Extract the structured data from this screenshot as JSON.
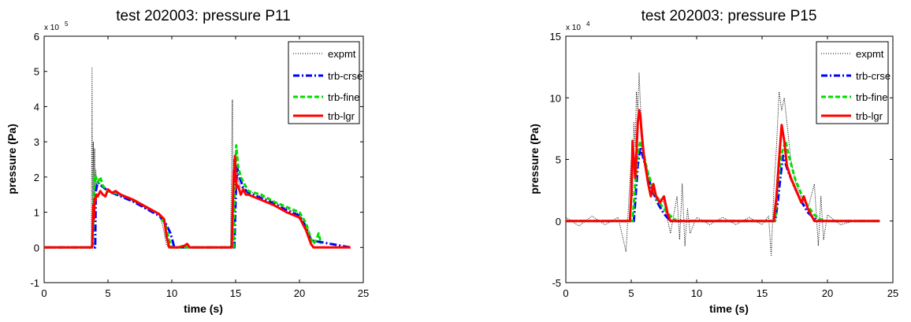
{
  "chart_data": [
    {
      "type": "line",
      "title": "test 202003: pressure P11",
      "xlabel": "time (s)",
      "ylabel": "pressure (Pa)",
      "xlim": [
        0,
        25
      ],
      "ylim": [
        -1,
        6
      ],
      "y_multiplier_label": "x 10",
      "y_multiplier_exponent": "5",
      "xticks": [
        "0",
        "5",
        "10",
        "15",
        "20",
        "25"
      ],
      "yticks": [
        "-1",
        "0",
        "1",
        "2",
        "3",
        "4",
        "5",
        "6"
      ],
      "legend_position": "top-right",
      "grid": false,
      "series": [
        {
          "name": "expmt",
          "color": "#000000",
          "style": "dotted",
          "x": [
            0,
            3.7,
            3.75,
            3.8,
            3.85,
            3.9,
            3.95,
            4.0,
            4.05,
            4.1,
            4.2,
            4.3,
            4.5,
            5.0,
            6.0,
            7.0,
            8.0,
            9.0,
            9.3,
            9.6,
            10.0,
            11.0,
            12.0,
            14.6,
            14.75,
            14.8,
            14.85,
            14.9,
            15.0,
            15.1,
            15.2,
            15.4,
            16.0,
            17.0,
            18.0,
            19.0,
            20.0,
            20.5,
            21.0,
            21.3
          ],
          "y": [
            0,
            0,
            5.1,
            0.2,
            3.0,
            1.5,
            2.8,
            1.6,
            2.2,
            1.8,
            1.9,
            1.85,
            1.75,
            1.6,
            1.45,
            1.3,
            1.1,
            0.95,
            0.6,
            0.05,
            0,
            0,
            0,
            0,
            4.2,
            1.2,
            2.5,
            1.9,
            1.5,
            2.3,
            1.9,
            1.7,
            1.6,
            1.45,
            1.3,
            1.1,
            0.95,
            0.5,
            0.05,
            0
          ]
        },
        {
          "name": "trb-crse",
          "color": "#0000ff",
          "style": "dashdot",
          "x": [
            0,
            4.0,
            4.05,
            4.2,
            4.5,
            5.0,
            6.0,
            7.0,
            8.0,
            9.0,
            9.5,
            9.9,
            10.2,
            14.9,
            15.0,
            15.1,
            15.3,
            15.6,
            16.0,
            17.0,
            18.0,
            19.0,
            20.0,
            20.5,
            20.9,
            24
          ],
          "y": [
            0,
            0,
            1.6,
            1.85,
            1.75,
            1.6,
            1.45,
            1.3,
            1.1,
            0.9,
            0.7,
            0.4,
            0,
            0,
            1.35,
            2.3,
            2.0,
            1.7,
            1.55,
            1.4,
            1.25,
            1.05,
            0.9,
            0.6,
            0.2,
            0
          ]
        },
        {
          "name": "trb-fine",
          "color": "#00dd00",
          "style": "dashed",
          "x": [
            0,
            3.8,
            3.9,
            4.0,
            4.2,
            4.4,
            4.6,
            5.0,
            6.0,
            7.0,
            8.0,
            9.0,
            9.5,
            9.8,
            10.0,
            14.85,
            14.95,
            15.05,
            15.2,
            15.4,
            15.7,
            16.0,
            17.0,
            18.0,
            19.0,
            20.0,
            20.5,
            20.9,
            21.1,
            21.3,
            21.5,
            21.7
          ],
          "y": [
            0,
            0,
            1.5,
            2.05,
            1.85,
            2.0,
            1.75,
            1.6,
            1.5,
            1.35,
            1.15,
            0.95,
            0.65,
            0.2,
            0,
            0,
            2.0,
            2.9,
            2.3,
            2.0,
            1.8,
            1.6,
            1.5,
            1.3,
            1.15,
            1.0,
            0.7,
            0.25,
            0.1,
            0.2,
            0.4,
            0.1
          ]
        },
        {
          "name": "trb-lgr",
          "color": "#ff0000",
          "style": "solid",
          "x": [
            0,
            3.75,
            3.8,
            3.85,
            3.9,
            3.95,
            4.0,
            4.1,
            4.2,
            4.4,
            4.6,
            4.8,
            5.0,
            5.3,
            5.6,
            6.0,
            7.0,
            8.0,
            9.0,
            9.4,
            9.6,
            9.8,
            10.5,
            11.0,
            11.2,
            11.4,
            14.7,
            14.75,
            14.8,
            14.85,
            14.9,
            14.95,
            15.0,
            15.1,
            15.2,
            15.4,
            15.6,
            15.8,
            16.0,
            17.0,
            18.0,
            19.0,
            20.0,
            20.5,
            20.9,
            21.1,
            24
          ],
          "y": [
            0,
            0,
            0.5,
            1.2,
            0.8,
            1.4,
            1.3,
            1.5,
            1.45,
            1.6,
            1.5,
            1.45,
            1.65,
            1.55,
            1.6,
            1.5,
            1.35,
            1.15,
            0.95,
            0.8,
            0.3,
            0,
            0,
            0.05,
            0.1,
            0,
            0,
            0.8,
            1.5,
            2.2,
            1.9,
            2.6,
            2.0,
            1.7,
            1.75,
            1.5,
            1.65,
            1.5,
            1.5,
            1.35,
            1.2,
            1.0,
            0.85,
            0.5,
            0.1,
            0,
            0
          ]
        }
      ]
    },
    {
      "type": "line",
      "title": "test 202003: pressure P15",
      "xlabel": "time (s)",
      "ylabel": "pressure (Pa)",
      "xlim": [
        0,
        25
      ],
      "ylim": [
        -5,
        15
      ],
      "y_multiplier_label": "x 10",
      "y_multiplier_exponent": "4",
      "xticks": [
        "0",
        "5",
        "10",
        "15",
        "20",
        "25"
      ],
      "yticks": [
        "-5",
        "0",
        "5",
        "10",
        "15"
      ],
      "legend_position": "top-right",
      "grid": false,
      "series": [
        {
          "name": "expmt",
          "color": "#000000",
          "style": "dotted",
          "x": [
            0,
            1,
            2,
            3,
            4,
            4.6,
            4.8,
            5.0,
            5.1,
            5.2,
            5.3,
            5.4,
            5.5,
            5.6,
            5.7,
            5.8,
            6.0,
            6.3,
            6.6,
            7.0,
            7.5,
            8.0,
            8.5,
            8.7,
            8.9,
            9.1,
            9.3,
            9.5,
            10,
            11,
            12,
            13,
            14,
            15,
            15.5,
            15.7,
            15.9,
            16.1,
            16.3,
            16.5,
            16.7,
            16.9,
            17.2,
            17.6,
            18,
            18.5,
            19,
            19.3,
            19.5,
            19.7,
            20,
            21,
            22
          ],
          "y": [
            0.3,
            -0.4,
            0.4,
            -0.3,
            0.3,
            -2.5,
            1.5,
            5.0,
            2.0,
            8.0,
            6.0,
            10.5,
            9.0,
            12.0,
            9.5,
            8.0,
            5.5,
            3.5,
            2.5,
            2.0,
            1.5,
            -1.0,
            2.0,
            -1.5,
            3.0,
            -2.0,
            1.0,
            -1.0,
            0.3,
            -0.3,
            0.3,
            -0.3,
            0.3,
            -0.3,
            0.4,
            -2.8,
            2.5,
            6.0,
            10.5,
            9.0,
            10.0,
            8.0,
            5.0,
            3.0,
            2.0,
            1.0,
            3.0,
            -2.0,
            2.0,
            -1.5,
            0.5,
            -0.3,
            0
          ]
        },
        {
          "name": "trb-crse",
          "color": "#0000ff",
          "style": "dashdot",
          "x": [
            0,
            5.2,
            5.3,
            5.5,
            5.7,
            6.0,
            6.5,
            7.0,
            7.5,
            8.0,
            16.0,
            16.2,
            16.4,
            16.6,
            17.0,
            17.5,
            18.0,
            18.5,
            19.0,
            19.5,
            24
          ],
          "y": [
            0,
            0,
            1.5,
            4.5,
            6.0,
            4.8,
            2.8,
            1.5,
            0.6,
            0,
            0,
            1.5,
            3.5,
            5.3,
            4.0,
            2.7,
            1.6,
            0.7,
            0.2,
            0,
            0
          ]
        },
        {
          "name": "trb-fine",
          "color": "#00dd00",
          "style": "dashed",
          "x": [
            0,
            5.1,
            5.3,
            5.5,
            5.7,
            5.9,
            6.2,
            6.6,
            7.0,
            7.5,
            8.0,
            8.5,
            16.0,
            16.2,
            16.5,
            16.8,
            17.0,
            17.5,
            18.0,
            18.5,
            19.0,
            19.5,
            20.0,
            24
          ],
          "y": [
            0,
            0,
            3.0,
            5.5,
            6.5,
            5.8,
            4.2,
            2.8,
            1.7,
            1.0,
            0.4,
            0,
            0,
            3.0,
            5.5,
            6.5,
            5.5,
            3.5,
            2.2,
            1.2,
            0.5,
            0.1,
            0,
            0
          ]
        },
        {
          "name": "trb-lgr",
          "color": "#ff0000",
          "style": "solid",
          "x": [
            0,
            4.9,
            5.0,
            5.1,
            5.2,
            5.3,
            5.4,
            5.5,
            5.6,
            5.7,
            5.8,
            6.0,
            6.3,
            6.5,
            6.7,
            6.9,
            7.2,
            7.5,
            7.8,
            8.0,
            15.9,
            16.1,
            16.3,
            16.5,
            16.7,
            16.9,
            17.2,
            17.6,
            18.0,
            18.2,
            18.5,
            19.0,
            24
          ],
          "y": [
            0,
            0,
            2.0,
            6.5,
            5.0,
            3.5,
            5.5,
            8.0,
            9.0,
            8.5,
            7.0,
            5.0,
            3.0,
            2.0,
            3.0,
            2.0,
            1.5,
            2.0,
            0.5,
            0,
            0,
            2.0,
            5.0,
            7.8,
            6.5,
            4.5,
            3.5,
            2.5,
            1.5,
            2.0,
            1.0,
            0,
            0
          ]
        }
      ]
    }
  ]
}
